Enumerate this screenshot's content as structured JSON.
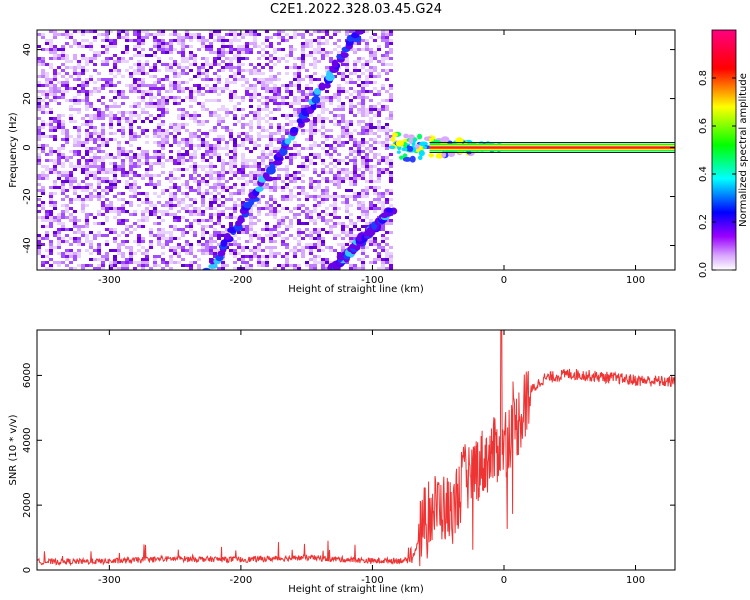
{
  "title": "C2E1.2022.328.03.45.G24",
  "chart_data": [
    {
      "type": "heatmap",
      "xlabel": "Height of straight line (km)",
      "ylabel": "Frequency (Hz)",
      "xlim": [
        -355,
        130
      ],
      "ylim": [
        -50,
        48
      ],
      "x_ticks": [
        -300,
        -200,
        -100,
        0,
        100
      ],
      "y_ticks": [
        -40,
        -20,
        0,
        20,
        40
      ],
      "x_tick_labels": [
        "-300",
        "-200",
        "-100",
        "0",
        "100"
      ],
      "y_tick_labels": [
        "-40",
        "-20",
        "0",
        "20",
        "40"
      ],
      "colorbar": {
        "label": "Normalized spectral amplitude",
        "range": [
          0,
          1
        ],
        "ticks": [
          0.0,
          0.2,
          0.4,
          0.6,
          0.8
        ],
        "tick_labels": [
          "0.0",
          "0.2",
          "0.4",
          "0.6",
          "0.8"
        ],
        "colormap": [
          "#ffffff",
          "#b300ff",
          "#0000ff",
          "#00ffff",
          "#00ff00",
          "#ffff00",
          "#ff0000",
          "#ff007f"
        ]
      },
      "noise_region_x": [
        -355,
        -87
      ],
      "features": [
        {
          "kind": "diagonal streak",
          "x": [
            -225,
            -110
          ],
          "y": [
            -50,
            48
          ],
          "peak_amplitude": 0.35
        },
        {
          "kind": "diagonal streak",
          "x": [
            -130,
            -85
          ],
          "y": [
            -50,
            -25
          ],
          "peak_amplitude": 0.3
        },
        {
          "kind": "carrier tone",
          "x": [
            -87,
            130
          ],
          "y": [
            0,
            0
          ],
          "peak_amplitude": 1.0
        }
      ],
      "grid": false
    },
    {
      "type": "line",
      "xlabel": "Height of straight line (km)",
      "ylabel": "SNR (10 * v/v)",
      "xlim": [
        -355,
        130
      ],
      "ylim": [
        0,
        7400
      ],
      "x_ticks": [
        -300,
        -200,
        -100,
        0,
        100
      ],
      "y_ticks": [
        0,
        2000,
        4000,
        6000
      ],
      "x_tick_labels": [
        "-300",
        "-200",
        "-100",
        "0",
        "100"
      ],
      "y_tick_labels": [
        "0",
        "2000",
        "4000",
        "6000"
      ],
      "color": "#ee3333",
      "x": [
        -355,
        -300,
        -250,
        -200,
        -150,
        -100,
        -70,
        -60,
        -50,
        -40,
        -30,
        -20,
        -10,
        0,
        10,
        20,
        30,
        50,
        75,
        100,
        130
      ],
      "y": [
        250,
        270,
        350,
        320,
        380,
        280,
        300,
        1600,
        2000,
        1800,
        2800,
        3200,
        3500,
        4000,
        4500,
        5500,
        5900,
        6050,
        5950,
        5850,
        5800
      ],
      "grid": false
    }
  ]
}
